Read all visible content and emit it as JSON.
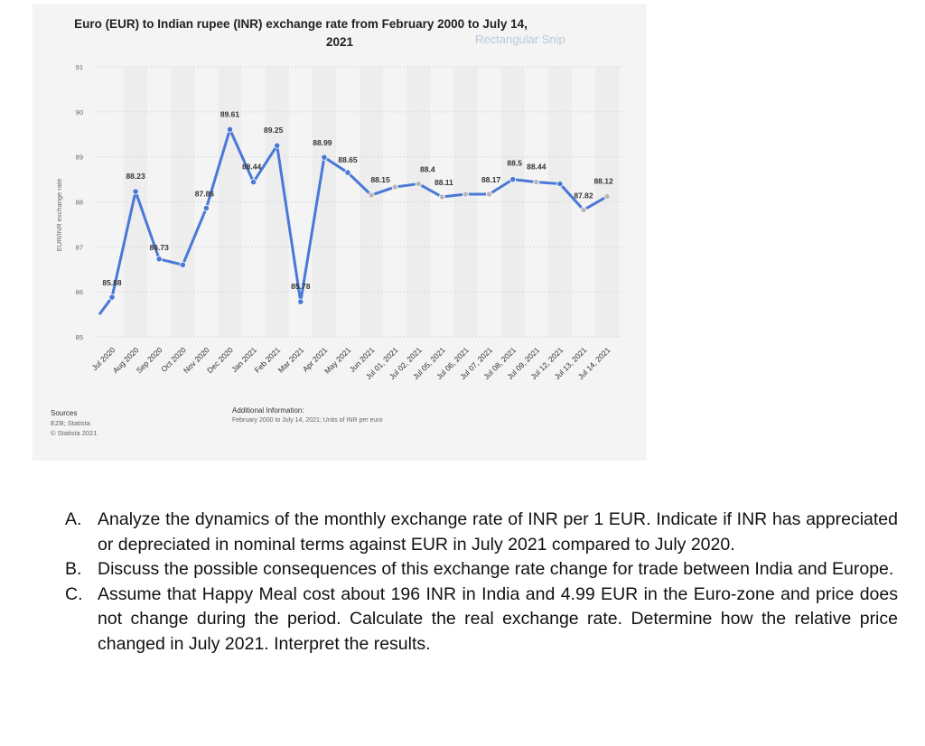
{
  "chart_data": {
    "type": "line",
    "title": "Euro (EUR) to Indian rupee (INR) exchange rate from February 2000 to July 14, 2021",
    "title_lines": [
      "Euro (EUR) to Indian rupee (INR) exchange rate from February 2000 to July 14,",
      "2021"
    ],
    "ylabel": "EUR/INR exchange rate",
    "ylim": [
      85,
      91
    ],
    "yticks": [
      85,
      86,
      87,
      88,
      89,
      90,
      91
    ],
    "grid": true,
    "line_color": "#4a78d6",
    "point_color_highlight": "#b8b8b8",
    "categories": [
      "Jul 2020",
      "Aug 2020",
      "Sep 2020",
      "Oct 2020",
      "Nov 2020",
      "Dec 2020",
      "Jan 2021",
      "Feb 2021",
      "Mar 2021",
      "Apr 2021",
      "May 2021",
      "Jun 2021",
      "Jul 01, 2021",
      "Jul 02, 2021",
      "Jul 05, 2021",
      "Jul 06, 2021",
      "Jul 07, 2021",
      "Jul 08, 2021",
      "Jul 09, 2021",
      "Jul 12, 2021",
      "Jul 13, 2021",
      "Jul 14, 2021"
    ],
    "values": [
      85.88,
      88.23,
      86.73,
      86.6,
      87.86,
      89.61,
      88.44,
      89.25,
      85.78,
      88.99,
      88.65,
      88.15,
      88.33,
      88.4,
      88.11,
      88.17,
      88.17,
      88.5,
      88.44,
      88.4,
      87.82,
      88.12
    ],
    "data_labels": [
      "85.88",
      "88.23",
      "86.73",
      "",
      "87.86",
      "89.61",
      "88.44",
      "89.25",
      "85.78",
      "88.99",
      "88.65",
      "88.15",
      "",
      "88.4",
      "88.11",
      "",
      "88.17",
      "88.5",
      "88.44",
      "",
      "87.82",
      "88.12"
    ],
    "series_start_value": 85.5,
    "ghost_text": "Rectangular Snip"
  },
  "sources": {
    "heading": "Sources",
    "lines": [
      "EZB; Statista",
      "© Statista 2021"
    ]
  },
  "additional_info": {
    "heading": "Additional Information:",
    "text": "February 2000 to July 14, 2021; Units of INR per euro"
  },
  "questions": [
    {
      "letter": "A.",
      "text": "Analyze the dynamics of the monthly exchange rate of INR per 1 EUR. Indicate if INR has appreciated or depreciated in nominal terms against EUR in July 2021 compared to July 2020."
    },
    {
      "letter": "B.",
      "text": "Discuss the possible consequences of this exchange rate change for trade between India and Europe."
    },
    {
      "letter": "C.",
      "text": "Assume that Happy Meal cost about 196 INR in India and 4.99 EUR in the Euro-zone and price does not change during the period. Calculate the real exchange rate. Determine how the relative price changed in July 2021. Interpret the results."
    }
  ]
}
